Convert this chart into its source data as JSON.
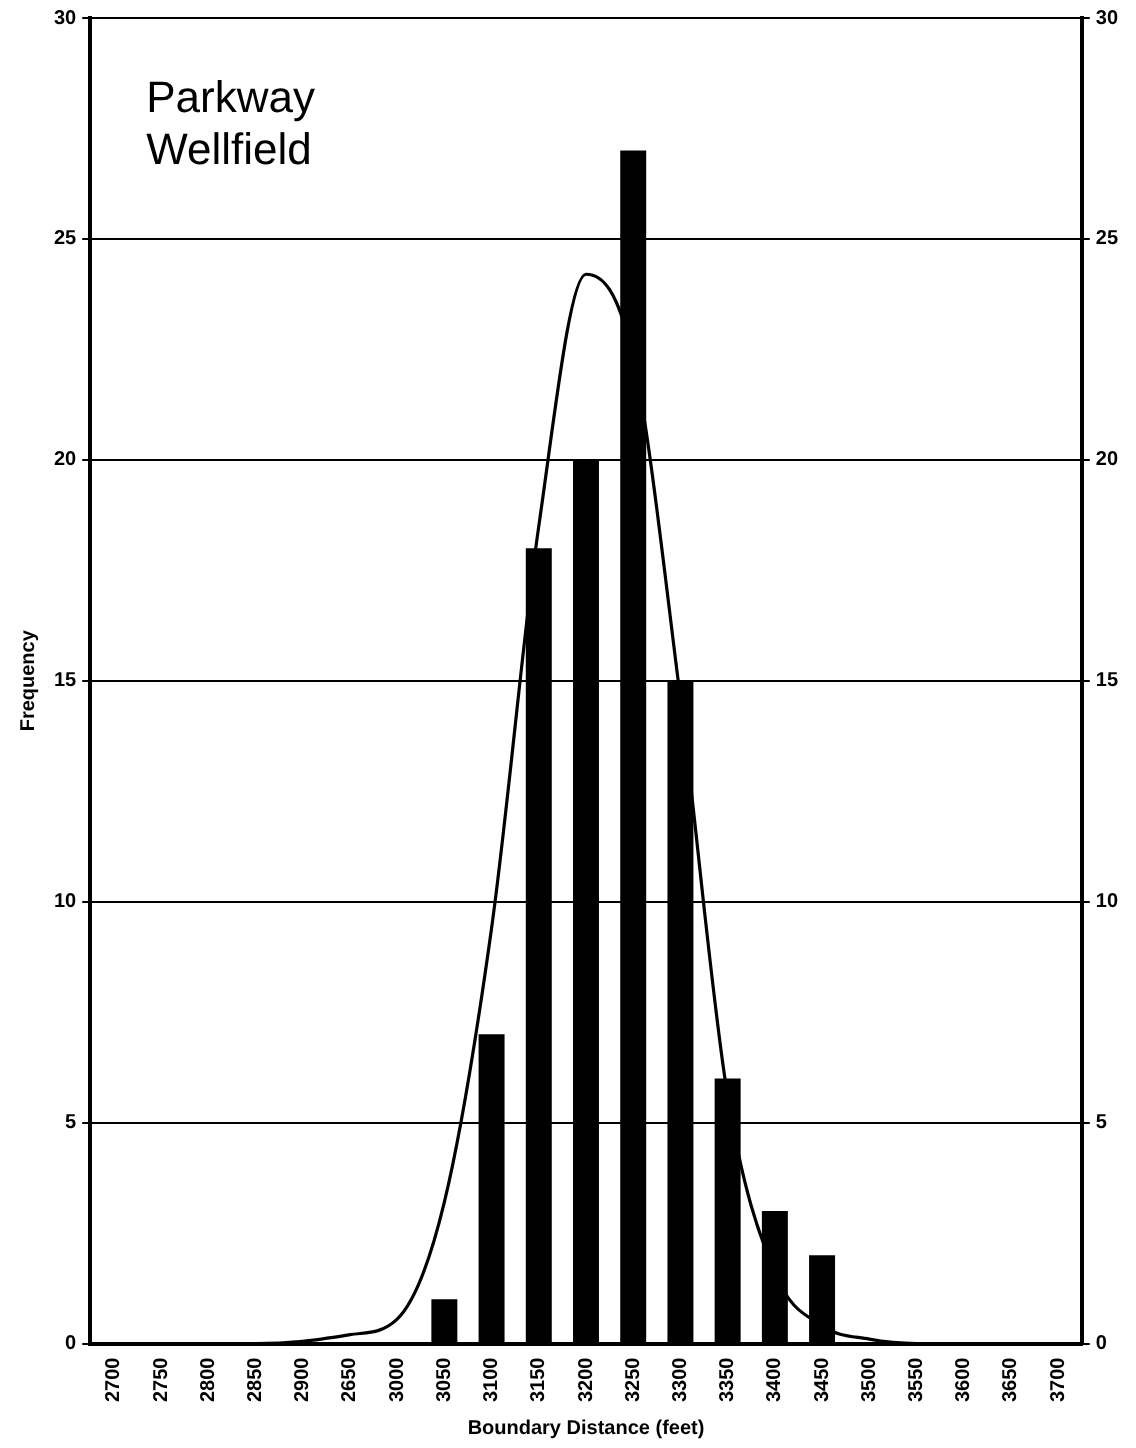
{
  "chart_data": {
    "type": "bar",
    "xlabel": "Boundary Distance (feet)",
    "ylabel": "Frequency",
    "annotations": [
      "Parkway\nWellfield"
    ],
    "categories": [
      "2700",
      "2750",
      "2800",
      "2850",
      "2900",
      "2650",
      "3000",
      "3050",
      "3100",
      "3150",
      "3200",
      "3250",
      "3300",
      "3350",
      "3400",
      "3450",
      "3500",
      "3550",
      "3600",
      "3650",
      "3700"
    ],
    "series": [
      {
        "color": "#000000",
        "values": [
          null,
          null,
          null,
          null,
          null,
          null,
          null,
          1,
          7,
          18,
          20,
          27,
          15,
          6,
          3,
          2,
          null,
          null,
          null,
          null,
          null
        ]
      },
      {
        "type": "line",
        "color": "#000000",
        "marker": "none",
        "values": [
          0,
          0,
          0,
          0,
          0.05,
          0.2,
          0.55,
          3.2,
          9.4,
          18.5,
          24.2,
          22.3,
          14.6,
          5.6,
          1.6,
          0.4,
          0.1,
          0,
          0,
          0,
          0
        ]
      }
    ],
    "ylim": [
      0,
      30
    ],
    "yticks": [
      0,
      5,
      10,
      15,
      20,
      25,
      30
    ],
    "y2lim": [
      0,
      30
    ],
    "y2ticks": [
      0,
      5,
      10,
      15,
      20,
      25,
      30
    ],
    "grid": "y",
    "legend": false
  }
}
